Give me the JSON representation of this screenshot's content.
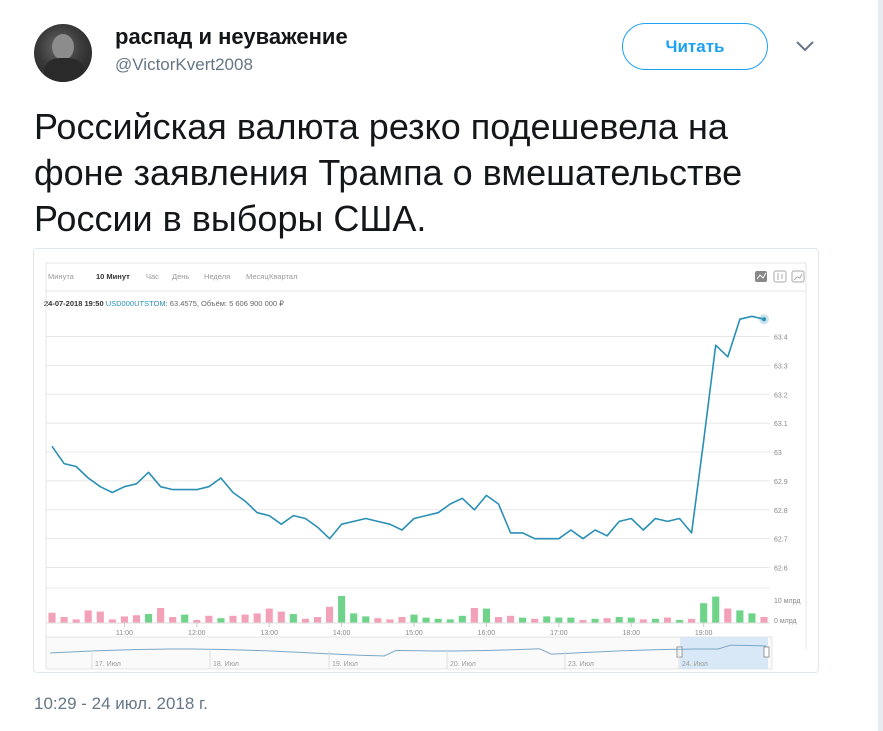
{
  "tweet": {
    "display_name": "распад и неуважение",
    "handle": "@VictorKvert2008",
    "follow_label": "Читать",
    "text": "Российская валюта резко подешевела на фоне заявления Трампа о вмешательстве России в выборы США.",
    "timestamp": "10:29 - 24 июл. 2018 г."
  },
  "chart_ui": {
    "tabs": [
      "Минута",
      "10 Минут",
      "Час",
      "День",
      "Неделя",
      "Месяц",
      "Квартал"
    ],
    "active_tab": "10 Минут",
    "info_date": "24-07-2018 19:50",
    "info_ticker": "USD000UTSTOM",
    "info_rest": ": 63.4575, Объём: 5 606 900 000 ₽",
    "nav_labels": [
      "17. Июл",
      "18. Июл",
      "19. Июл",
      "20. Июл",
      "23. Июл",
      "24. Июл"
    ],
    "accent_color": "#2a8fb5",
    "volume_up_color": "#6fd38a",
    "volume_down_color": "#f3a0b9"
  },
  "chart_data": {
    "type": "line",
    "ylim": [
      62.55,
      63.53
    ],
    "yticks": [
      63.4,
      63.3,
      63.2,
      63.1,
      63.0,
      62.9,
      62.8,
      62.7,
      62.6
    ],
    "ytick_labels": [
      "63.4",
      "63.3",
      "63.2",
      "63.1",
      "63",
      "62.9",
      "62.8",
      "62.7",
      "62.6"
    ],
    "xticks": [
      "11:00",
      "12:00",
      "13:00",
      "14:00",
      "15:00",
      "16:00",
      "17:00",
      "18:00",
      "19:00"
    ],
    "xtick_minutes": [
      660,
      720,
      780,
      840,
      900,
      960,
      1020,
      1080,
      1140
    ],
    "x_minutes": [
      600,
      610,
      620,
      630,
      640,
      650,
      660,
      670,
      680,
      690,
      700,
      710,
      720,
      730,
      740,
      750,
      760,
      770,
      780,
      790,
      800,
      810,
      820,
      830,
      840,
      850,
      860,
      870,
      880,
      890,
      900,
      910,
      920,
      930,
      940,
      950,
      960,
      970,
      980,
      990,
      1000,
      1010,
      1020,
      1030,
      1040,
      1050,
      1060,
      1070,
      1080,
      1090,
      1100,
      1110,
      1120,
      1130,
      1140,
      1150,
      1160,
      1170,
      1180,
      1190
    ],
    "price": [
      63.02,
      62.96,
      62.95,
      62.91,
      62.88,
      62.86,
      62.88,
      62.89,
      62.93,
      62.88,
      62.87,
      62.87,
      62.87,
      62.88,
      62.91,
      62.86,
      62.83,
      62.79,
      62.78,
      62.75,
      62.78,
      62.77,
      62.74,
      62.7,
      62.75,
      62.76,
      62.77,
      62.76,
      62.75,
      62.73,
      62.77,
      62.78,
      62.79,
      62.82,
      62.84,
      62.8,
      62.85,
      62.82,
      62.72,
      62.72,
      62.7,
      62.7,
      62.7,
      62.73,
      62.7,
      62.73,
      62.71,
      62.76,
      62.77,
      62.73,
      62.77,
      62.76,
      62.77,
      62.72,
      63.04,
      63.37,
      63.33,
      63.46,
      63.47,
      63.46
    ],
    "volume_ylabels": [
      "10 млрд",
      "0 млрд"
    ],
    "volume": [
      0.17,
      0.1,
      0.06,
      0.21,
      0.19,
      0.06,
      0.11,
      0.13,
      0.15,
      0.25,
      0.1,
      0.14,
      0.05,
      0.12,
      0.08,
      0.12,
      0.14,
      0.16,
      0.24,
      0.19,
      0.15,
      0.07,
      0.1,
      0.27,
      0.45,
      0.16,
      0.11,
      0.08,
      0.06,
      0.1,
      0.14,
      0.09,
      0.07,
      0.06,
      0.12,
      0.25,
      0.24,
      0.1,
      0.12,
      0.09,
      0.07,
      0.11,
      0.09,
      0.09,
      0.05,
      0.07,
      0.08,
      0.1,
      0.09,
      0.06,
      0.07,
      0.09,
      0.05,
      0.07,
      0.33,
      0.44,
      0.24,
      0.21,
      0.16,
      0.1
    ],
    "volume_up": [
      false,
      false,
      false,
      false,
      false,
      false,
      false,
      false,
      true,
      false,
      false,
      true,
      false,
      false,
      true,
      false,
      false,
      false,
      false,
      false,
      true,
      false,
      false,
      false,
      true,
      true,
      true,
      false,
      false,
      false,
      true,
      true,
      true,
      true,
      true,
      false,
      true,
      false,
      false,
      true,
      false,
      true,
      true,
      true,
      false,
      true,
      false,
      true,
      true,
      false,
      true,
      false,
      true,
      false,
      true,
      true,
      false,
      true,
      true,
      false
    ]
  }
}
